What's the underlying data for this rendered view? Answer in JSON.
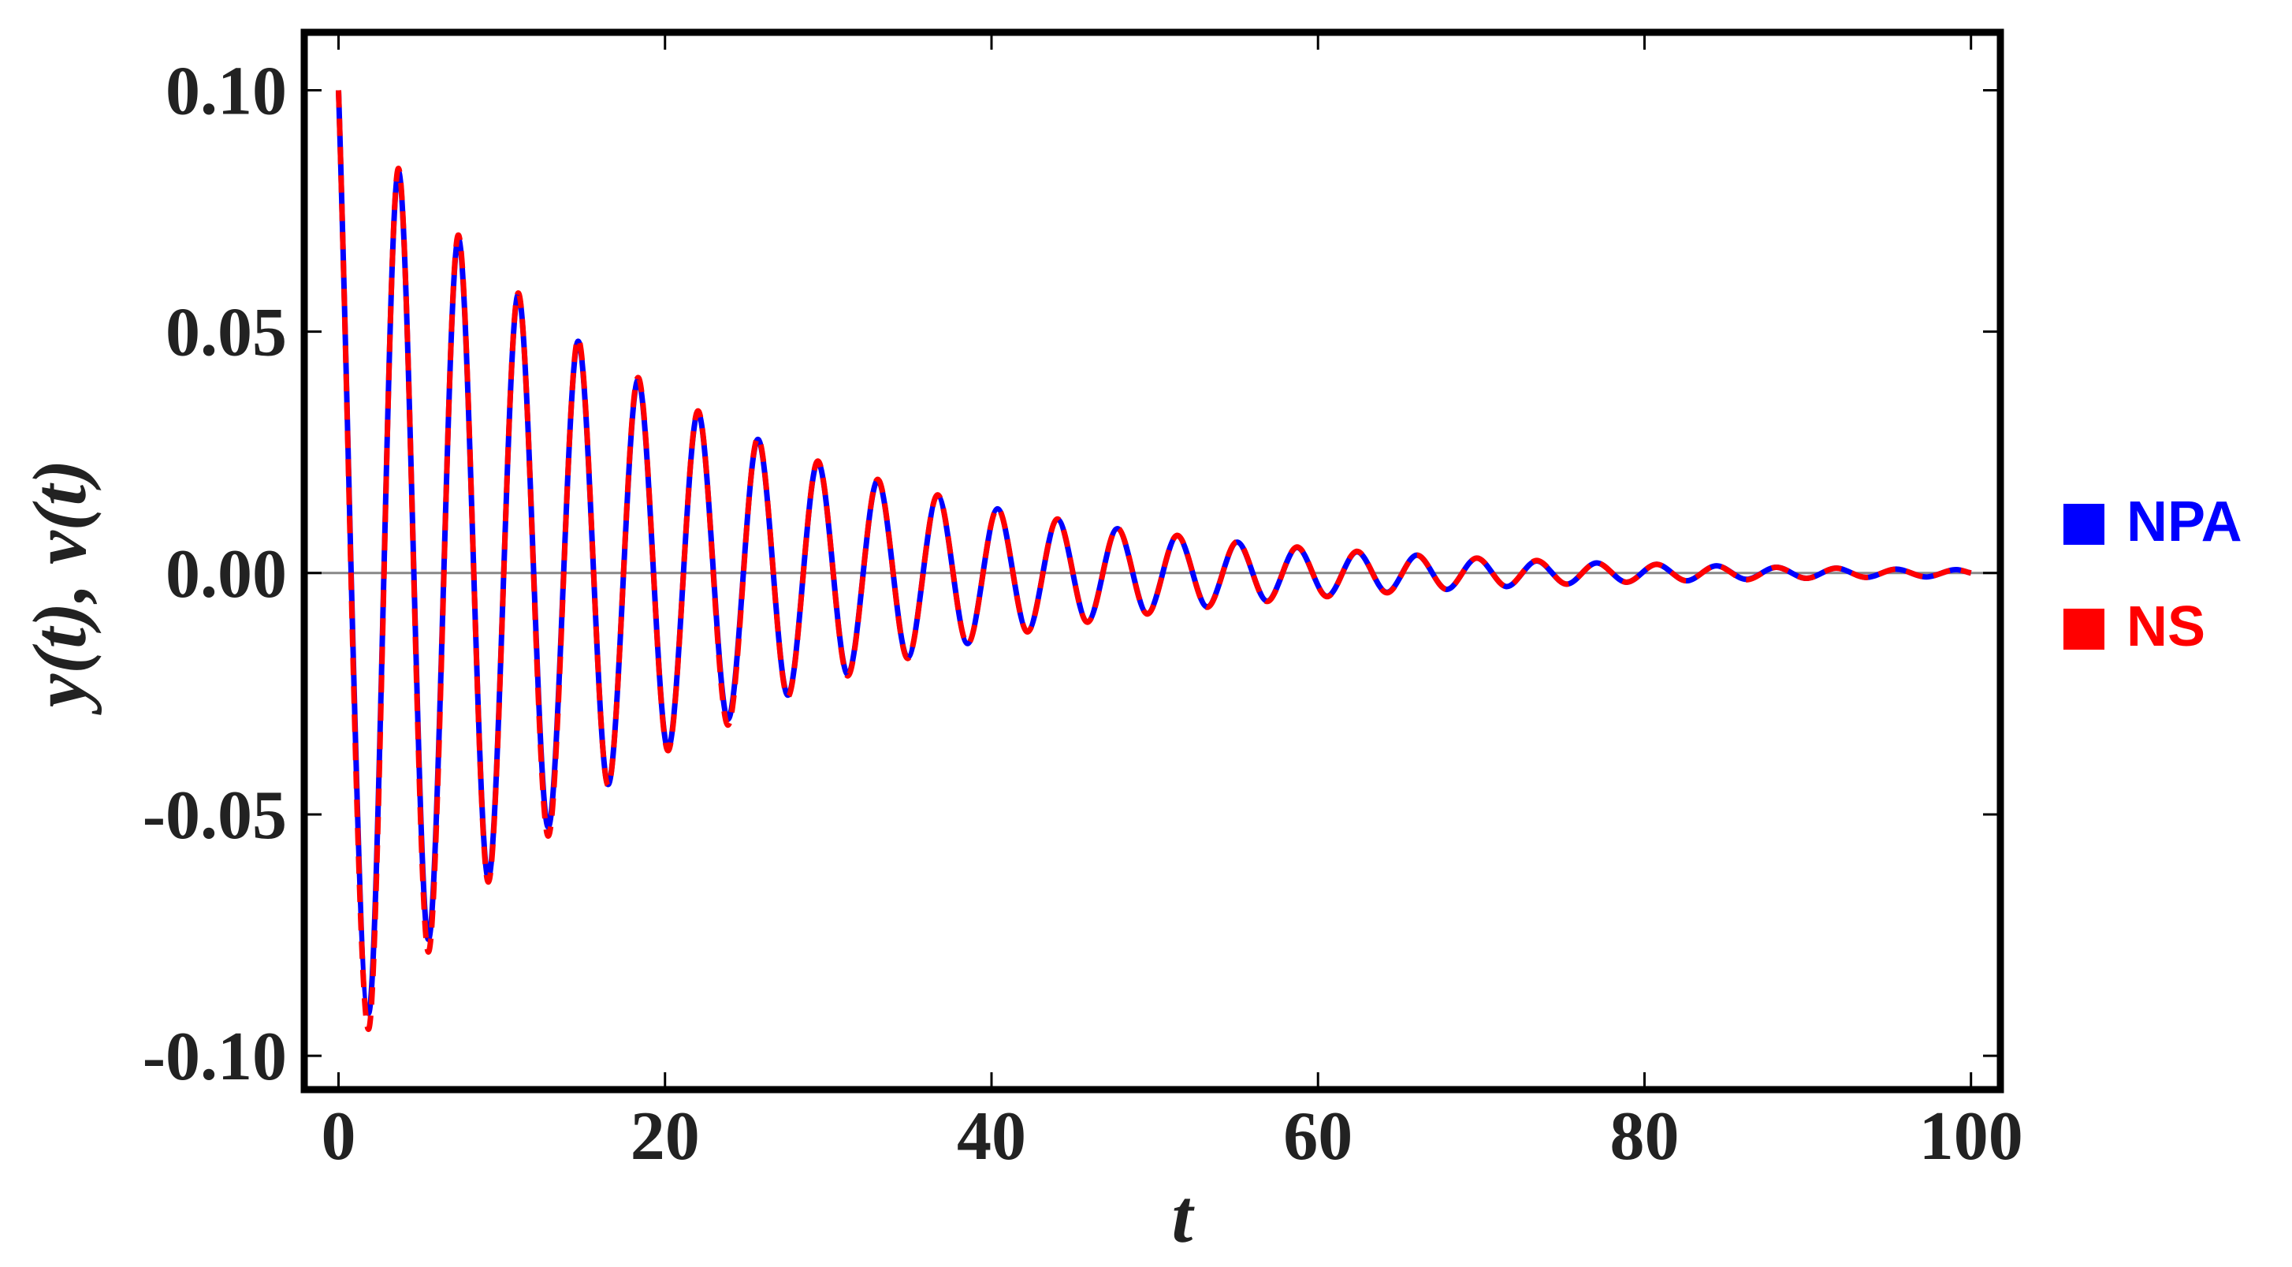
{
  "chart_data": {
    "type": "line",
    "xlabel": "t",
    "ylabel": "y(t), v(t)",
    "xlim": [
      -2.1,
      101.8
    ],
    "ylim": [
      -0.107,
      0.112
    ],
    "xticks": [
      0,
      20,
      40,
      60,
      80,
      100
    ],
    "yticks": [
      {
        "value": -0.1,
        "label": "-0.10"
      },
      {
        "value": -0.05,
        "label": "-0.05"
      },
      {
        "value": 0,
        "label": "0.00"
      },
      {
        "value": 0.05,
        "label": "0.05"
      },
      {
        "value": 0.1,
        "label": "0.10"
      }
    ],
    "legend": "right",
    "x": [
      0,
      1.835,
      3.67,
      5.505,
      7.34,
      9.175,
      11.01,
      12.845,
      14.68,
      16.515,
      18.35,
      20.185,
      22.02,
      23.855,
      25.69,
      27.525,
      29.36,
      31.195,
      33.03,
      34.865,
      36.7,
      38.535,
      40.37,
      42.205,
      44.04,
      45.875,
      47.71,
      49.545,
      51.38,
      53.215,
      55.05,
      56.885,
      58.72,
      60.555,
      62.39,
      64.225,
      66.06,
      67.895,
      69.73,
      71.565,
      73.4,
      75.235,
      77.07,
      78.905,
      80.74,
      82.575,
      84.41,
      86.245,
      88.08,
      89.915,
      91.75,
      93.585,
      95.42,
      97.255,
      99.09,
      100
    ],
    "series": [
      {
        "name": "NPA",
        "color": "#0000ff",
        "dashed": false,
        "values": [
          0.1,
          -0.0912,
          0.0832,
          -0.0759,
          0.0693,
          -0.0632,
          0.0577,
          -0.0526,
          0.048,
          -0.0438,
          0.04,
          -0.0364,
          0.0333,
          -0.0303,
          0.0277,
          -0.0253,
          0.023,
          -0.021,
          0.0192,
          -0.0175,
          0.016,
          -0.0146,
          0.0133,
          -0.0121,
          0.0111,
          -0.0101,
          0.0092,
          -0.0084,
          0.0077,
          -0.007,
          0.0064,
          -0.0058,
          0.0053,
          -0.0048,
          0.0044,
          -0.004,
          0.0037,
          -0.0034,
          0.0031,
          -0.0028,
          0.0025,
          -0.0023,
          0.0021,
          -0.0019,
          0.0018,
          -0.0016,
          0.0015,
          -0.0013,
          0.0012,
          -0.0011,
          0.001,
          -0.0009,
          0.0008,
          -0.0008,
          0.0007,
          0
        ]
      },
      {
        "name": "NS",
        "color": "#ff0000",
        "dashed": true,
        "values": [
          0.1,
          -0.0945,
          0.0838,
          -0.0785,
          0.07,
          -0.064,
          0.058,
          -0.0545,
          0.0485,
          -0.044,
          0.0405,
          -0.0368,
          0.0336,
          -0.0315,
          0.028,
          -0.0256,
          0.0232,
          -0.0213,
          0.0194,
          -0.0177,
          0.0162,
          -0.0147,
          0.0134,
          -0.0122,
          0.0112,
          -0.0102,
          0.0093,
          -0.0085,
          0.0078,
          -0.0071,
          0.0065,
          -0.0059,
          0.0054,
          -0.0049,
          0.0045,
          -0.0041,
          0.0037,
          -0.0034,
          0.0031,
          -0.0028,
          0.0026,
          -0.0023,
          0.0021,
          -0.0019,
          0.0018,
          -0.0016,
          0.0015,
          -0.0014,
          0.0012,
          -0.0011,
          0.001,
          -0.0009,
          0.0008,
          -0.0008,
          0.0007,
          0
        ]
      }
    ]
  }
}
